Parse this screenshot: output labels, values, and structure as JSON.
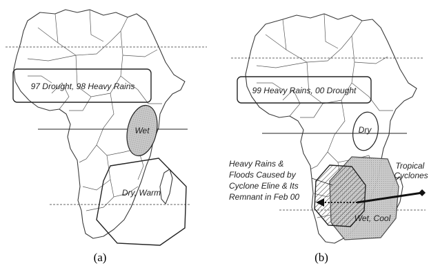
{
  "panels": [
    {
      "caption": "(a)",
      "labels": {
        "drought_rains": "97 Drought, 98 Heavy Rains",
        "east_africa": "Wet",
        "southern_africa": "Dry, Warm"
      }
    },
    {
      "caption": "(b)",
      "labels": {
        "drought_rains": "99 Heavy Rains, 00 Drought",
        "east_africa": "Dry",
        "southern_africa": "Wet, Cool",
        "tropical_cyclones": [
          "Tropical",
          "Cyclones"
        ],
        "cyclone_note": [
          "Heavy Rains &",
          "Floods Caused by",
          "Cyclone Eline & Its",
          "Remnant in Feb 00"
        ]
      }
    }
  ],
  "colors": {
    "shading": "#c8c8c8",
    "outline": "#3a3a3a"
  }
}
